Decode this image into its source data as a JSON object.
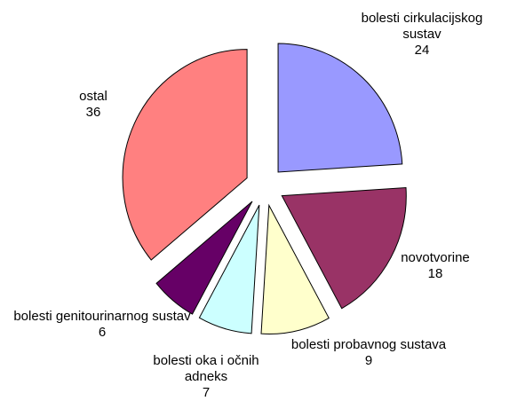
{
  "chart_data": {
    "type": "pie",
    "categories": [
      "bolesti cirkulacijskog sustav",
      "novotvorine",
      "bolesti probavnog sustava",
      "bolesti oka i očnih adneks",
      "bolesti genitourinarnog sustav",
      "ostal"
    ],
    "values": [
      24,
      18,
      9,
      7,
      6,
      36
    ],
    "colors": [
      "#9999ff",
      "#993366",
      "#ffffcc",
      "#ccffff",
      "#660066",
      "#ff8080"
    ],
    "exploded": true
  }
}
